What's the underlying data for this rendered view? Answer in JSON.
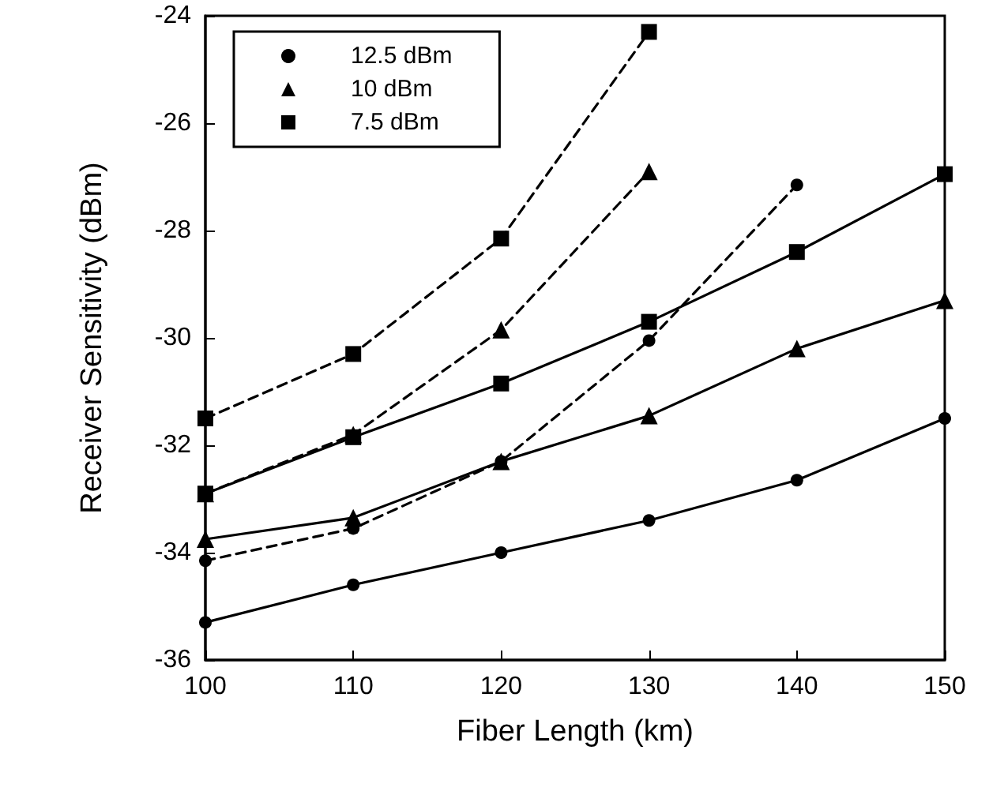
{
  "chart_data": {
    "type": "line",
    "xlabel": "Fiber Length (km)",
    "ylabel": "Receiver Sensitivity (dBm)",
    "xlim": [
      100,
      150
    ],
    "xticks": [
      100,
      110,
      120,
      130,
      140,
      150
    ],
    "ylim": [
      -36,
      -24
    ],
    "yticks": [
      -36,
      -34,
      -32,
      -30,
      -28,
      -26,
      -24
    ],
    "grid": false,
    "legend": "top left",
    "series": [
      {
        "name": "12.5 dBm",
        "color": "#000000",
        "marker": "circle",
        "line_style": "solid",
        "x": [
          100,
          110,
          120,
          130,
          140,
          150
        ],
        "values": [
          -35.3,
          -34.6,
          -34.0,
          -33.4,
          -32.65,
          -31.5
        ]
      },
      {
        "name": "10 dBm",
        "color": "#000000",
        "marker": "triangle",
        "line_style": "solid",
        "x": [
          100,
          110,
          120,
          130,
          140,
          150
        ],
        "values": [
          -33.75,
          -33.35,
          -32.3,
          -31.45,
          -30.2,
          -29.3
        ]
      },
      {
        "name": "7.5 dBm",
        "color": "#000000",
        "marker": "square",
        "line_style": "solid",
        "x": [
          100,
          110,
          120,
          130,
          140,
          150
        ],
        "values": [
          -32.9,
          -31.85,
          -30.85,
          -29.7,
          -28.4,
          -26.95
        ]
      },
      {
        "color": "#000000",
        "marker": "circle",
        "line_style": "dashed",
        "x": [
          100,
          110,
          120,
          130,
          140
        ],
        "values": [
          -34.15,
          -33.55,
          -32.3,
          -30.05,
          -27.15
        ]
      },
      {
        "color": "#000000",
        "marker": "triangle",
        "line_style": "dashed",
        "x": [
          100,
          110,
          120,
          130
        ],
        "values": [
          -32.9,
          -31.8,
          -29.85,
          -26.9
        ]
      },
      {
        "color": "#000000",
        "marker": "square",
        "line_style": "dashed",
        "x": [
          100,
          110,
          120,
          130
        ],
        "values": [
          -31.5,
          -30.3,
          -28.15,
          -24.3
        ]
      }
    ]
  }
}
